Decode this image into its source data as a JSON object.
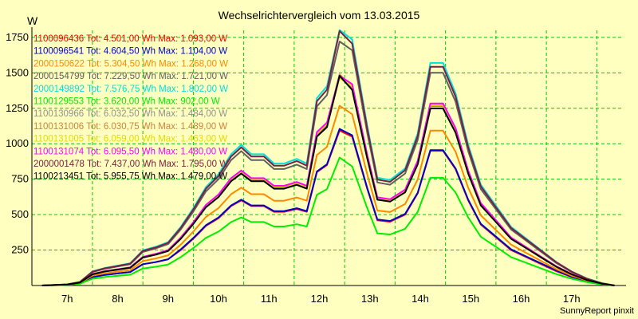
{
  "chart_data": {
    "type": "line",
    "title": "Wechselrichtervergleich vom 13.03.2015",
    "ylabel": "W",
    "footer": "SunnyReport pinxit",
    "ylim": [
      0,
      1800
    ],
    "xlim": [
      6.3,
      18.0
    ],
    "y_ticks": [
      250,
      500,
      750,
      1000,
      1250,
      1500,
      1750
    ],
    "x_ticks": [
      {
        "value": 7,
        "label": "7h"
      },
      {
        "value": 8,
        "label": "8h"
      },
      {
        "value": 9,
        "label": "9h"
      },
      {
        "value": 10,
        "label": "10h"
      },
      {
        "value": 11,
        "label": "11h"
      },
      {
        "value": 12,
        "label": "12h"
      },
      {
        "value": 13,
        "label": "13h"
      },
      {
        "value": 14,
        "label": "14h"
      },
      {
        "value": 15,
        "label": "15h"
      },
      {
        "value": 16,
        "label": "16h"
      },
      {
        "value": 17,
        "label": "17h"
      }
    ],
    "grid": true,
    "legend_position": "top-left",
    "x": [
      6.5,
      7.0,
      7.25,
      7.5,
      7.75,
      8.0,
      8.25,
      8.5,
      8.75,
      9.0,
      9.25,
      9.5,
      9.75,
      10.0,
      10.25,
      10.45,
      10.65,
      10.9,
      11.1,
      11.3,
      11.55,
      11.75,
      11.95,
      12.15,
      12.4,
      12.65,
      12.95,
      13.15,
      13.4,
      13.7,
      13.95,
      14.2,
      14.45,
      14.7,
      14.95,
      15.2,
      15.5,
      15.8,
      16.1,
      16.4,
      16.7,
      17.0,
      17.3,
      17.6,
      17.85
    ],
    "series": [
      {
        "name": "1100096436 Tot: 4.501,00 Wh Max: 1.093,00 W",
        "color": "#ff0000",
        "values": [
          0,
          5,
          15,
          60,
          75,
          85,
          95,
          150,
          165,
          185,
          250,
          330,
          420,
          475,
          560,
          600,
          560,
          560,
          520,
          520,
          540,
          520,
          800,
          850,
          1093,
          1050,
          680,
          460,
          450,
          500,
          650,
          950,
          950,
          820,
          600,
          430,
          340,
          250,
          200,
          150,
          100,
          60,
          30,
          10,
          0
        ]
      },
      {
        "name": "1100096541 Tot: 4.604,50 Wh Max: 1.104,00 W",
        "color": "#0000cc",
        "values": [
          0,
          5,
          15,
          60,
          75,
          85,
          95,
          150,
          165,
          185,
          255,
          335,
          425,
          480,
          565,
          605,
          565,
          565,
          525,
          525,
          545,
          525,
          805,
          855,
          1104,
          1060,
          685,
          465,
          455,
          505,
          655,
          955,
          955,
          825,
          605,
          435,
          345,
          255,
          205,
          155,
          105,
          62,
          32,
          10,
          0
        ]
      },
      {
        "name": "2000150622 Tot: 5.304,50 Wh Max: 1.268,00 W",
        "color": "#ff8800",
        "values": [
          0,
          6,
          17,
          70,
          86,
          98,
          109,
          172,
          190,
          213,
          288,
          380,
          483,
          546,
          644,
          690,
          644,
          644,
          598,
          598,
          621,
          598,
          920,
          978,
          1268,
          1208,
          782,
          529,
          518,
          575,
          748,
          1093,
          1093,
          943,
          690,
          495,
          391,
          288,
          230,
          172,
          115,
          69,
          35,
          12,
          0
        ]
      },
      {
        "name": "2000154799 Tot: 7.229,50 Wh Max: 1.721,00 W",
        "color": "#606060",
        "values": [
          0,
          8,
          24,
          95,
          118,
          134,
          150,
          237,
          261,
          292,
          395,
          521,
          664,
          750,
          885,
          948,
          885,
          885,
          822,
          822,
          853,
          822,
          1264,
          1343,
          1721,
          1659,
          1075,
          727,
          711,
          790,
          1027,
          1501,
          1501,
          1296,
          948,
          680,
          537,
          395,
          316,
          237,
          158,
          95,
          47,
          16,
          0
        ]
      },
      {
        "name": "2000149892 Tot: 7.576,75 Wh Max: 1.802,00 W",
        "color": "#00e0e0",
        "values": [
          0,
          8,
          25,
          99,
          124,
          140,
          157,
          248,
          273,
          306,
          413,
          545,
          694,
          785,
          926,
          992,
          926,
          926,
          860,
          860,
          893,
          860,
          1322,
          1405,
          1802,
          1735,
          1124,
          760,
          744,
          826,
          1074,
          1570,
          1570,
          1355,
          992,
          711,
          562,
          413,
          331,
          248,
          165,
          99,
          50,
          17,
          0
        ]
      },
      {
        "name": "1100129553 Tot: 3.620,00 Wh Max: 902,00 W",
        "color": "#00ee00",
        "values": [
          0,
          4,
          12,
          48,
          60,
          68,
          76,
          120,
          132,
          148,
          200,
          264,
          336,
          380,
          448,
          480,
          448,
          448,
          416,
          416,
          432,
          416,
          640,
          680,
          902,
          840,
          544,
          368,
          360,
          400,
          520,
          760,
          760,
          656,
          480,
          344,
          272,
          200,
          160,
          120,
          80,
          48,
          24,
          8,
          0
        ]
      },
      {
        "name": "1100130966 Tot: 6.032,50 Wh Max: 1.484,00 W",
        "color": "#909090",
        "values": [
          0,
          7,
          20,
          80,
          100,
          113,
          126,
          199,
          219,
          246,
          333,
          439,
          559,
          631,
          745,
          798,
          745,
          745,
          692,
          692,
          718,
          692,
          1064,
          1130,
          1484,
          1396,
          904,
          612,
          599,
          665,
          865,
          1264,
          1264,
          1091,
          798,
          572,
          452,
          333,
          266,
          199,
          133,
          80,
          40,
          13,
          0
        ]
      },
      {
        "name": "1100131006 Tot: 6.030,75 Wh Max: 1.489,00 W",
        "color": "#d08040",
        "values": [
          0,
          7,
          20,
          80,
          100,
          113,
          126,
          199,
          219,
          246,
          333,
          439,
          559,
          632,
          746,
          799,
          746,
          746,
          692,
          692,
          719,
          692,
          1065,
          1132,
          1489,
          1398,
          905,
          612,
          599,
          666,
          865,
          1265,
          1265,
          1092,
          799,
          572,
          452,
          333,
          266,
          199,
          133,
          80,
          40,
          13,
          0
        ]
      },
      {
        "name": "1100131005 Tot: 6.059,00 Wh Max: 1.463,00 W",
        "color": "#dddd00",
        "values": [
          0,
          7,
          20,
          80,
          101,
          114,
          127,
          201,
          221,
          248,
          335,
          442,
          563,
          636,
          751,
          804,
          751,
          751,
          697,
          697,
          724,
          697,
          1072,
          1140,
          1463,
          1407,
          911,
          617,
          603,
          670,
          871,
          1273,
          1273,
          1099,
          804,
          576,
          456,
          335,
          268,
          201,
          134,
          80,
          40,
          13,
          0
        ]
      },
      {
        "name": "1100131074 Tot: 6.095,50 Wh Max: 1.480,00 W",
        "color": "#ff00ff",
        "values": [
          0,
          7,
          21,
          81,
          101,
          115,
          128,
          202,
          223,
          250,
          338,
          446,
          568,
          642,
          757,
          811,
          757,
          757,
          703,
          703,
          730,
          703,
          1082,
          1149,
          1480,
          1420,
          919,
          622,
          608,
          676,
          879,
          1284,
          1284,
          1109,
          811,
          581,
          460,
          338,
          270,
          202,
          135,
          81,
          41,
          14,
          0
        ]
      },
      {
        "name": "2000001478 Tot: 7.437,00 Wh Max: 1.795,00 W",
        "color": "#7a2040",
        "values": [
          0,
          8,
          25,
          98,
          122,
          138,
          154,
          244,
          268,
          301,
          406,
          536,
          683,
          772,
          910,
          975,
          910,
          910,
          845,
          845,
          878,
          845,
          1300,
          1381,
          1795,
          1706,
          1105,
          747,
          731,
          813,
          1056,
          1543,
          1543,
          1332,
          975,
          699,
          552,
          406,
          325,
          244,
          163,
          98,
          49,
          16,
          0
        ]
      },
      {
        "name": "1100213451 Tot: 5.955,75 Wh Max: 1.479,00 W",
        "color": "#000000",
        "values": [
          0,
          7,
          20,
          79,
          99,
          112,
          125,
          197,
          217,
          243,
          329,
          434,
          552,
          624,
          736,
          789,
          736,
          736,
          683,
          683,
          710,
          683,
          1051,
          1117,
          1479,
          1380,
          894,
          605,
          592,
          657,
          855,
          1249,
          1249,
          1078,
          789,
          565,
          447,
          329,
          263,
          197,
          131,
          79,
          39,
          13,
          0
        ]
      }
    ]
  }
}
